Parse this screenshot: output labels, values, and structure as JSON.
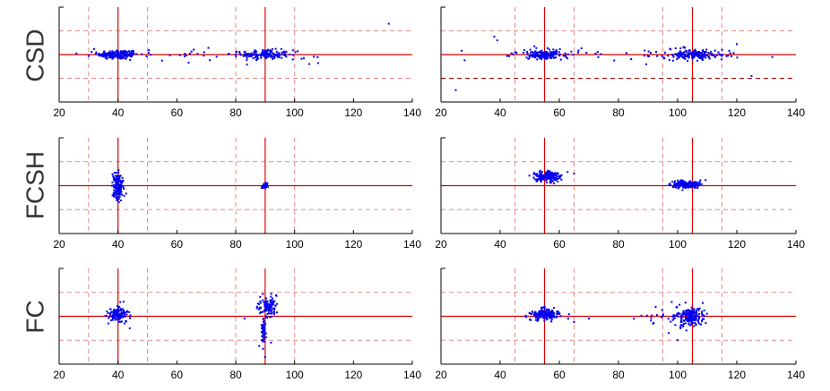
{
  "figure": {
    "row_labels": [
      "CSD",
      "FCSH",
      "FC"
    ]
  },
  "colors": {
    "points": "#0000ee",
    "solid_line": "#dd0000",
    "dashed_line": "#e88a8a",
    "dark_dashed_line": "#aa0000",
    "axis": "#000000"
  },
  "chart_data": [
    {
      "type": "scatter",
      "row": 0,
      "col": 0,
      "xlim": [
        20,
        140
      ],
      "ylim": [
        -1,
        1
      ],
      "xticks": [
        20,
        40,
        60,
        80,
        100,
        120,
        140
      ],
      "vlines_solid": [
        40,
        90
      ],
      "vlines_dashed": [
        30,
        50,
        80,
        100
      ],
      "hline_solid": 0,
      "hlines_dashed": [
        -0.5,
        0.5
      ],
      "clusters": [
        {
          "cx": 40,
          "cy": 0,
          "sx": 3.5,
          "sy": 0.05,
          "n": 170
        },
        {
          "cx": 90,
          "cy": 0,
          "sx": 4,
          "sy": 0.05,
          "n": 160
        }
      ],
      "spread": [
        {
          "x0": 24,
          "x1": 110,
          "sy": 0.06,
          "n": 45
        }
      ],
      "outliers": [
        [
          132,
          0.65
        ],
        [
          105,
          -0.2
        ],
        [
          108,
          -0.18
        ],
        [
          64,
          -0.17
        ]
      ]
    },
    {
      "type": "scatter",
      "row": 0,
      "col": 1,
      "xlim": [
        20,
        140
      ],
      "ylim": [
        -1,
        1
      ],
      "xticks": [
        20,
        40,
        60,
        80,
        100,
        120,
        140
      ],
      "vlines_solid": [
        55,
        105
      ],
      "vlines_dashed": [
        45,
        65,
        95,
        115
      ],
      "hline_solid": 0,
      "hlines_dashed": [
        0.5
      ],
      "hlines_dark_dashed": [
        -0.5
      ],
      "clusters": [
        {
          "cx": 55,
          "cy": 0,
          "sx": 3.5,
          "sy": 0.05,
          "n": 170
        },
        {
          "cx": 105,
          "cy": 0,
          "sx": 4,
          "sy": 0.05,
          "n": 170
        }
      ],
      "spread": [
        {
          "x0": 40,
          "x1": 125,
          "sy": 0.07,
          "n": 60
        }
      ],
      "outliers": [
        [
          25,
          -0.75
        ],
        [
          38,
          0.38
        ],
        [
          39,
          0.3
        ],
        [
          28,
          -0.12
        ],
        [
          27,
          0.08
        ],
        [
          125,
          -0.45
        ],
        [
          132,
          -0.05
        ],
        [
          120,
          0.22
        ]
      ]
    },
    {
      "type": "scatter",
      "row": 1,
      "col": 0,
      "xlim": [
        20,
        140
      ],
      "ylim": [
        -1,
        1
      ],
      "xticks": [
        20,
        40,
        60,
        80,
        100,
        120,
        140
      ],
      "vlines_solid": [
        40,
        90
      ],
      "vlines_dashed": [
        30,
        50,
        80,
        100
      ],
      "hline_solid": 0,
      "hlines_dashed": [
        -0.5,
        0.5
      ],
      "clusters": [
        {
          "cx": 40,
          "cy": -0.02,
          "sx": 0.9,
          "sy": 0.14,
          "n": 160
        },
        {
          "cx": 90,
          "cy": 0,
          "sx": 0.6,
          "sy": 0.03,
          "n": 45
        }
      ],
      "spread": [],
      "outliers": []
    },
    {
      "type": "scatter",
      "row": 1,
      "col": 1,
      "xlim": [
        20,
        140
      ],
      "ylim": [
        -1,
        1
      ],
      "xticks": [
        20,
        40,
        60,
        80,
        100,
        120,
        140
      ],
      "vlines_solid": [
        55,
        105
      ],
      "vlines_dashed": [
        45,
        65,
        95,
        115
      ],
      "hline_solid": 0,
      "hlines_dashed": [
        -0.5,
        0.5
      ],
      "clusters": [
        {
          "cx": 56,
          "cy": 0.2,
          "sx": 2.2,
          "sy": 0.06,
          "n": 190
        },
        {
          "cx": 103,
          "cy": 0.02,
          "sx": 2.6,
          "sy": 0.04,
          "n": 170
        }
      ],
      "spread": [],
      "outliers": [
        [
          65,
          0.25
        ]
      ]
    },
    {
      "type": "scatter",
      "row": 2,
      "col": 0,
      "xlim": [
        20,
        140
      ],
      "ylim": [
        -1,
        1
      ],
      "xticks": [
        20,
        40,
        60,
        80,
        100,
        120,
        140
      ],
      "vlines_solid": [
        40,
        90
      ],
      "vlines_dashed": [
        30,
        50,
        80,
        100
      ],
      "hline_solid": 0,
      "hlines_dashed": [
        -0.5,
        0.5
      ],
      "clusters": [
        {
          "cx": 40,
          "cy": 0.03,
          "sx": 1.6,
          "sy": 0.07,
          "n": 150
        },
        {
          "cx": 91,
          "cy": 0.2,
          "sx": 1.6,
          "sy": 0.1,
          "n": 110
        },
        {
          "cx": 89.5,
          "cy": -0.3,
          "sx": 0.5,
          "sy": 0.18,
          "n": 45
        }
      ],
      "spread": [],
      "outliers": [
        [
          90,
          -0.85
        ],
        [
          88,
          -0.62
        ],
        [
          92,
          -0.55
        ],
        [
          83,
          -0.05
        ],
        [
          44,
          -0.25
        ],
        [
          94,
          0.08
        ]
      ]
    },
    {
      "type": "scatter",
      "row": 2,
      "col": 1,
      "xlim": [
        20,
        140
      ],
      "ylim": [
        -1,
        1
      ],
      "xticks": [
        20,
        40,
        60,
        80,
        100,
        120,
        140
      ],
      "vlines_solid": [
        55,
        105
      ],
      "vlines_dashed": [
        45,
        65,
        95,
        115
      ],
      "hline_solid": 0,
      "hlines_dashed": [
        -0.5,
        0.5
      ],
      "clusters": [
        {
          "cx": 55,
          "cy": 0.03,
          "sx": 2.2,
          "sy": 0.06,
          "n": 170
        },
        {
          "cx": 104,
          "cy": 0.0,
          "sx": 2.5,
          "sy": 0.1,
          "n": 200
        }
      ],
      "spread": [
        {
          "x0": 85,
          "x1": 100,
          "sy": 0.1,
          "n": 18
        }
      ],
      "outliers": [
        [
          63,
          -0.05
        ],
        [
          65,
          -0.12
        ],
        [
          70,
          -0.05
        ],
        [
          98,
          0.3
        ],
        [
          100,
          -0.5
        ],
        [
          97,
          -0.35
        ],
        [
          101,
          -0.25
        ],
        [
          60,
          0.05
        ]
      ]
    }
  ]
}
